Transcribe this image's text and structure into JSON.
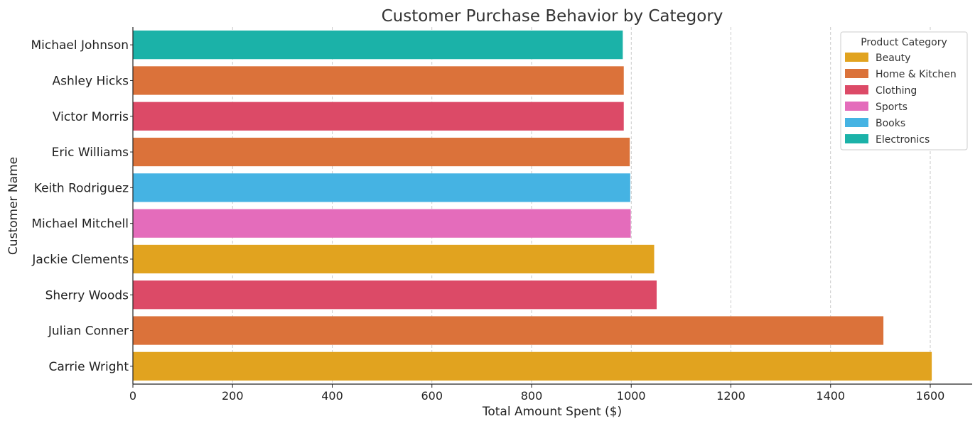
{
  "chart_data": {
    "type": "bar",
    "orientation": "horizontal",
    "title": "Customer Purchase Behavior by Category",
    "xlabel": "Total Amount Spent ($)",
    "ylabel": "Customer Name",
    "xlim": [
      0,
      1680
    ],
    "xticks": [
      0,
      200,
      400,
      600,
      800,
      1000,
      1200,
      1400,
      1600
    ],
    "grid": "x-dashed",
    "categories": [
      "Michael Johnson",
      "Ashley Hicks",
      "Victor Morris",
      "Eric Williams",
      "Keith Rodriguez",
      "Michael Mitchell",
      "Jackie Clements",
      "Sherry Woods",
      "Julian Conner",
      "Carrie Wright"
    ],
    "values": [
      983,
      985,
      985,
      997,
      998,
      999,
      1046,
      1051,
      1506,
      1603
    ],
    "bar_category": [
      "Electronics",
      "Home & Kitchen",
      "Clothing",
      "Home & Kitchen",
      "Books",
      "Sports",
      "Beauty",
      "Clothing",
      "Home & Kitchen",
      "Beauty"
    ],
    "legend": {
      "title": "Product Category",
      "placement": "top-right",
      "entries": [
        {
          "name": "Beauty",
          "color": "#E1A31F"
        },
        {
          "name": "Home & Kitchen",
          "color": "#DB723A"
        },
        {
          "name": "Clothing",
          "color": "#DC4A67"
        },
        {
          "name": "Sports",
          "color": "#E46CBB"
        },
        {
          "name": "Books",
          "color": "#45B3E3"
        },
        {
          "name": "Electronics",
          "color": "#1BB2A8"
        }
      ]
    }
  }
}
